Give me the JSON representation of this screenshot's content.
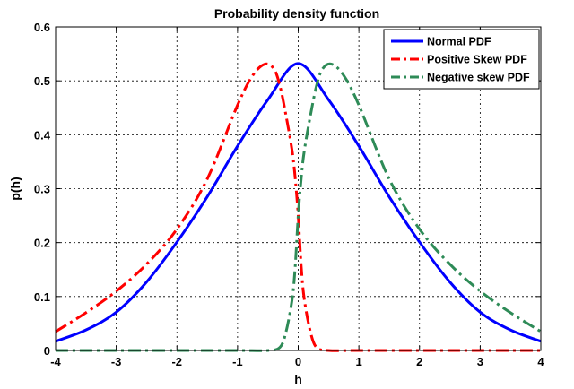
{
  "chart_data": {
    "type": "line",
    "title": "Probability density function",
    "xlabel": "h",
    "ylabel": "p(h)",
    "xlim": [
      -4,
      4
    ],
    "ylim": [
      0,
      0.6
    ],
    "xticks": [
      -4,
      -3,
      -2,
      -1,
      0,
      1,
      2,
      3,
      4
    ],
    "yticks": [
      0,
      0.1,
      0.2,
      0.3,
      0.4,
      0.5,
      0.6
    ],
    "grid": true,
    "legend_position": "top-right",
    "series": [
      {
        "name": "Normal PDF",
        "color": "#0000ff",
        "style": "solid",
        "x": [
          -4,
          -3.5,
          -3,
          -2.5,
          -2,
          -1.5,
          -1,
          -0.5,
          0,
          0.5,
          1,
          1.5,
          2,
          2.5,
          3,
          3.5,
          4
        ],
        "y": [
          0.017,
          0.038,
          0.071,
          0.127,
          0.201,
          0.285,
          0.379,
          0.465,
          0.532,
          0.465,
          0.379,
          0.285,
          0.201,
          0.127,
          0.071,
          0.038,
          0.017
        ]
      },
      {
        "name": "Positive Skew PDF",
        "color": "#ff0000",
        "style": "dashdot",
        "x": [
          -4,
          -3.5,
          -3,
          -2.5,
          -2,
          -1.5,
          -1,
          -0.75,
          -0.55,
          -0.4,
          -0.3,
          -0.2,
          -0.1,
          -0.05,
          0,
          0.05,
          0.1,
          0.2,
          0.3,
          0.5,
          1,
          2,
          3,
          4
        ],
        "y": [
          0.035,
          0.07,
          0.11,
          0.16,
          0.225,
          0.318,
          0.455,
          0.51,
          0.531,
          0.522,
          0.49,
          0.435,
          0.37,
          0.32,
          0.25,
          0.155,
          0.095,
          0.035,
          0.006,
          0.0,
          0.0,
          0.0,
          0.0,
          0.0
        ]
      },
      {
        "name": "Negative skew PDF",
        "color": "#2e8b57",
        "style": "dashdot",
        "x": [
          -4,
          -3,
          -2,
          -1,
          -0.5,
          -0.3,
          -0.2,
          -0.1,
          -0.05,
          0,
          0.05,
          0.1,
          0.2,
          0.3,
          0.4,
          0.55,
          0.75,
          1,
          1.5,
          2,
          2.5,
          3,
          3.5,
          4
        ],
        "y": [
          0.0,
          0.0,
          0.0,
          0.0,
          0.0,
          0.006,
          0.035,
          0.095,
          0.155,
          0.25,
          0.32,
          0.37,
          0.435,
          0.49,
          0.522,
          0.531,
          0.51,
          0.455,
          0.318,
          0.225,
          0.16,
          0.11,
          0.07,
          0.035
        ]
      }
    ]
  }
}
